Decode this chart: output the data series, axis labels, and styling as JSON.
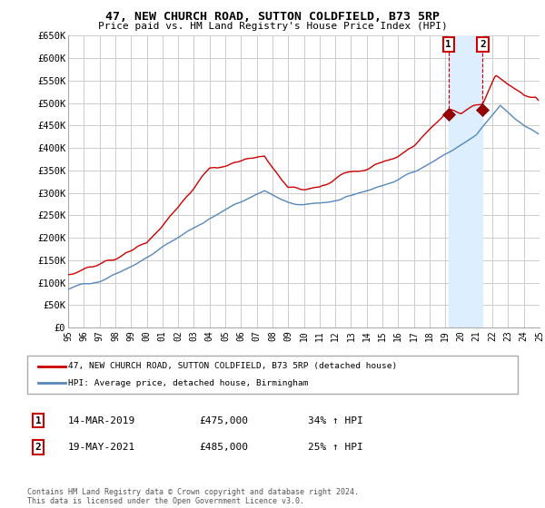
{
  "title": "47, NEW CHURCH ROAD, SUTTON COLDFIELD, B73 5RP",
  "subtitle": "Price paid vs. HM Land Registry's House Price Index (HPI)",
  "legend_line1": "47, NEW CHURCH ROAD, SUTTON COLDFIELD, B73 5RP (detached house)",
  "legend_line2": "HPI: Average price, detached house, Birmingham",
  "annotation1_date": "14-MAR-2019",
  "annotation1_price": "£475,000",
  "annotation1_pct": "34% ↑ HPI",
  "annotation2_date": "19-MAY-2021",
  "annotation2_price": "£485,000",
  "annotation2_pct": "25% ↑ HPI",
  "footer": "Contains HM Land Registry data © Crown copyright and database right 2024.\nThis data is licensed under the Open Government Licence v3.0.",
  "red_color": "#cc0000",
  "blue_color": "#5588bb",
  "shade_color": "#ddeeff",
  "background_color": "#ffffff",
  "grid_color": "#cccccc",
  "ylim": [
    0,
    650000
  ],
  "yticks": [
    0,
    50000,
    100000,
    150000,
    200000,
    250000,
    300000,
    350000,
    400000,
    450000,
    500000,
    550000,
    600000,
    650000
  ],
  "ytick_labels": [
    "£0",
    "£50K",
    "£100K",
    "£150K",
    "£200K",
    "£250K",
    "£300K",
    "£350K",
    "£400K",
    "£450K",
    "£500K",
    "£550K",
    "£600K",
    "£650K"
  ],
  "sale1_year": 2019.21,
  "sale1_price": 475000,
  "sale2_year": 2021.38,
  "sale2_price": 485000,
  "xlim_start": 1995,
  "xlim_end": 2025
}
